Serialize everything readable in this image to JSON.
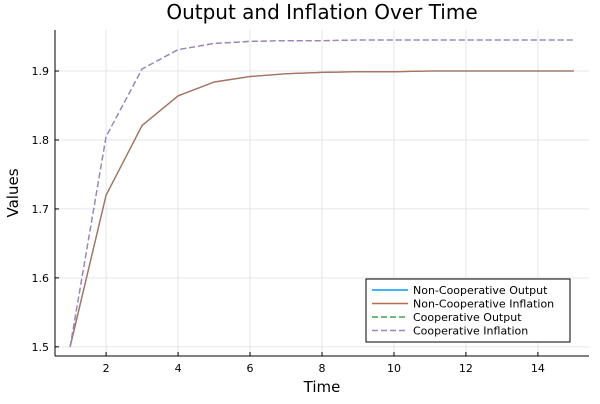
{
  "chart_data": {
    "type": "line",
    "title": "Output and Inflation Over Time",
    "xlabel": "Time",
    "ylabel": "Values",
    "xlim": [
      0.58,
      15.42
    ],
    "ylim": [
      1.4867,
      1.9595
    ],
    "xticks": [
      2,
      4,
      6,
      8,
      10,
      12,
      14
    ],
    "yticks": [
      1.5,
      1.6,
      1.7,
      1.8,
      1.9
    ],
    "grid": true,
    "legend_position": "bottom-right",
    "x": [
      1,
      2,
      3,
      4,
      5,
      6,
      7,
      8,
      9,
      10,
      11,
      12,
      13,
      14,
      15
    ],
    "series": [
      {
        "name": "Non-Cooperative Output",
        "color": "#009AFA",
        "style": "solid",
        "values": [
          1.5,
          1.72,
          1.821,
          1.864,
          1.884,
          1.892,
          1.896,
          1.898,
          1.899,
          1.899,
          1.9,
          1.9,
          1.9,
          1.9,
          1.9
        ]
      },
      {
        "name": "Non-Cooperative Inflation",
        "color": "#B56F4F",
        "style": "solid",
        "values": [
          1.5,
          1.72,
          1.821,
          1.864,
          1.884,
          1.892,
          1.896,
          1.898,
          1.899,
          1.899,
          1.9,
          1.9,
          1.9,
          1.9,
          1.9
        ]
      },
      {
        "name": "Cooperative Output",
        "color": "#3DA44D",
        "style": "dashed",
        "values": [
          1.5,
          1.805,
          1.903,
          1.931,
          1.94,
          1.943,
          1.944,
          1.944,
          1.945,
          1.945,
          1.945,
          1.945,
          1.945,
          1.945,
          1.945
        ]
      },
      {
        "name": "Cooperative Inflation",
        "color": "#A47FCC",
        "style": "dashed",
        "values": [
          1.5,
          1.805,
          1.903,
          1.931,
          1.94,
          1.943,
          1.944,
          1.944,
          1.945,
          1.945,
          1.945,
          1.945,
          1.945,
          1.945,
          1.945
        ]
      }
    ]
  }
}
